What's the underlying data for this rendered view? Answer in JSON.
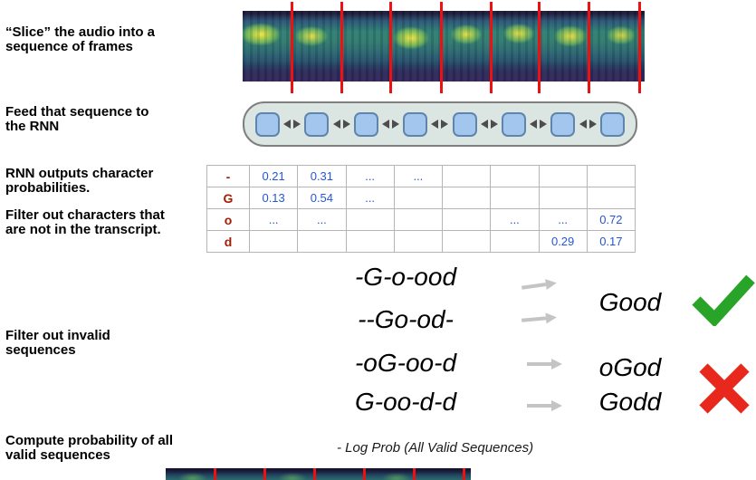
{
  "labels": {
    "slice": "“Slice” the audio into a\nsequence of frames",
    "feed": "Feed that sequence to\nthe RNN",
    "rnn_outputs": "RNN outputs character\nprobabilities.",
    "filter_chars": "Filter out characters that\nare not in the transcript.",
    "filter_invalid": "Filter out invalid\nsequences",
    "compute": "Compute probability of all\nvalid sequences"
  },
  "rnn": {
    "num_cells": 8,
    "num_frames": 8
  },
  "prob_table": {
    "rows": [
      {
        "char": "-",
        "values": [
          "0.21",
          "0.31",
          "...",
          "...",
          "",
          "",
          "",
          ""
        ]
      },
      {
        "char": "G",
        "values": [
          "0.13",
          "0.54",
          "...",
          "",
          "",
          "",
          "",
          ""
        ]
      },
      {
        "char": "o",
        "values": [
          "...",
          "...",
          "",
          "",
          "",
          "...",
          "...",
          "0.72"
        ]
      },
      {
        "char": "d",
        "values": [
          "",
          "",
          "",
          "",
          "",
          "",
          "0.29",
          "0.17"
        ]
      }
    ]
  },
  "decoding": {
    "sequences": [
      "-G-o-ood",
      "--Go-od-",
      "-oG-oo-d",
      "G-oo-d-d"
    ],
    "valid_output": "Good",
    "invalid_outputs": [
      "oGod",
      "Godd"
    ]
  },
  "formula": "- Log Prob (All Valid Sequences)",
  "colors": {
    "slice_line": "#ee1111",
    "table_char": "#a61c00",
    "table_value": "#2456d6",
    "check": "#28a428",
    "cross": "#e8271d",
    "flow_arrow": "#c4c4c4",
    "rnn_cell_fill": "#a3c6ee",
    "rnn_cell_border": "#5f85ad",
    "rnn_container_fill": "#dbe5e1"
  }
}
